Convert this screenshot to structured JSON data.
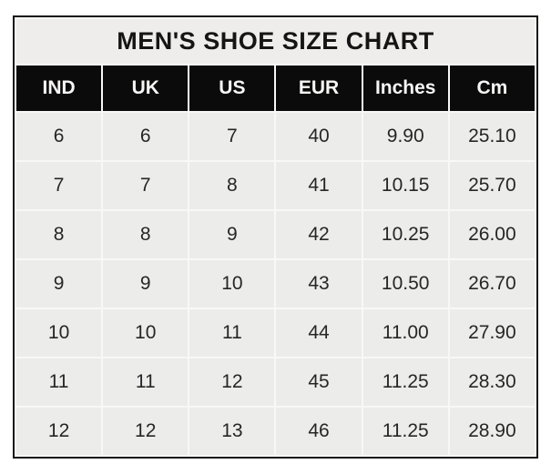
{
  "title": "MEN'S SHOE SIZE CHART",
  "colors": {
    "page_background": "#ffffff",
    "outer_border": "#141414",
    "title_background": "#eeedec",
    "header_background": "#0b0b0b",
    "header_text": "#f7f6f5",
    "cell_background": "#ececeb",
    "separator": "#f8f8f7",
    "data_text": "#262626"
  },
  "chart_data": {
    "type": "table",
    "title": "MEN'S SHOE SIZE CHART",
    "columns": [
      "IND",
      "UK",
      "US",
      "EUR",
      "Inches",
      "Cm"
    ],
    "rows": [
      [
        "6",
        "6",
        "7",
        "40",
        "9.90",
        "25.10"
      ],
      [
        "7",
        "7",
        "8",
        "41",
        "10.15",
        "25.70"
      ],
      [
        "8",
        "8",
        "9",
        "42",
        "10.25",
        "26.00"
      ],
      [
        "9",
        "9",
        "10",
        "43",
        "10.50",
        "26.70"
      ],
      [
        "10",
        "10",
        "11",
        "44",
        "11.00",
        "27.90"
      ],
      [
        "11",
        "11",
        "12",
        "45",
        "11.25",
        "28.30"
      ],
      [
        "12",
        "12",
        "13",
        "46",
        "11.25",
        "28.90"
      ]
    ]
  }
}
